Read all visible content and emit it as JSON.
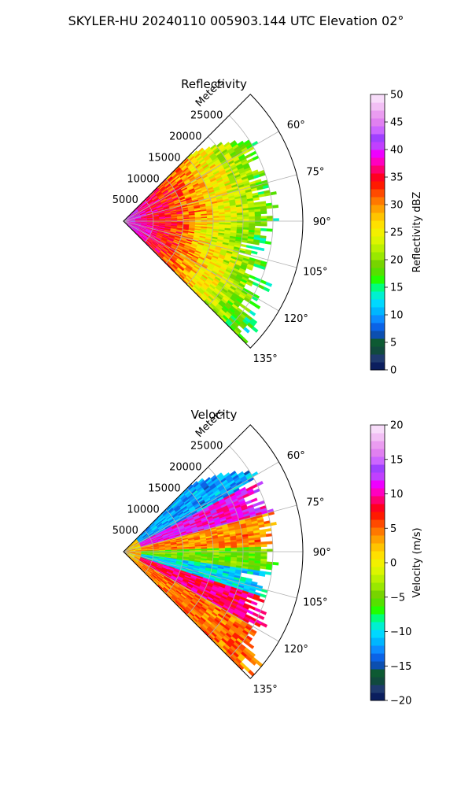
{
  "suptitle": "SKYLER-HU  20240110  005903.144 UTC Elevation 02°",
  "chart_data": [
    {
      "type": "heatmap",
      "projection": "polar-sector",
      "title": "Reflectivity",
      "range_label": "Meters",
      "range_ticks": [
        5000,
        10000,
        15000,
        20000,
        25000
      ],
      "range_tick_labels": [
        "5000",
        "10000",
        "15000",
        "20000",
        "25000"
      ],
      "range_max": 30000,
      "azimuth_range_deg": [
        45,
        135
      ],
      "azimuth_ticks": [
        60,
        75,
        90,
        105,
        120,
        135
      ],
      "azimuth_tick_labels": [
        "60°",
        "75°",
        "90°",
        "105°",
        "120°",
        "135°"
      ],
      "grid": true,
      "colorbar": {
        "label": "Reflectivity dBZ",
        "range": [
          0,
          50
        ],
        "ticks": [
          0,
          5,
          10,
          15,
          20,
          25,
          30,
          35,
          40,
          45,
          50
        ],
        "tick_labels": [
          "0",
          "5",
          "10",
          "15",
          "20",
          "25",
          "30",
          "35",
          "40",
          "45",
          "50"
        ],
        "colormap": [
          "#0b1e5e",
          "#1f3a6e",
          "#114a3e",
          "#0d5a33",
          "#0c4fb0",
          "#0b63e6",
          "#0c8cff",
          "#00b6ff",
          "#00d8ff",
          "#00f0d0",
          "#00ff7a",
          "#22ff00",
          "#55e000",
          "#77d400",
          "#99e800",
          "#bbf000",
          "#dcf500",
          "#f2f000",
          "#ffe000",
          "#ffc400",
          "#ffa000",
          "#ff7800",
          "#ff4a00",
          "#ff1a00",
          "#ff0020",
          "#ff0070",
          "#ff00c0",
          "#ee00ff",
          "#c040ff",
          "#a040ff",
          "#cc66ff",
          "#e080f0",
          "#ea9cf0",
          "#f2bff5",
          "#f8dcfa"
        ]
      },
      "field_description": "strong returns near radar, decreasing with range"
    },
    {
      "type": "heatmap",
      "projection": "polar-sector",
      "title": "Velocity",
      "range_label": "Meters",
      "range_ticks": [
        5000,
        10000,
        15000,
        20000,
        25000
      ],
      "range_tick_labels": [
        "5000",
        "10000",
        "15000",
        "20000",
        "25000"
      ],
      "range_max": 30000,
      "azimuth_range_deg": [
        45,
        135
      ],
      "azimuth_ticks": [
        60,
        75,
        90,
        105,
        120,
        135
      ],
      "azimuth_tick_labels": [
        "60°",
        "75°",
        "90°",
        "105°",
        "120°",
        "135°"
      ],
      "grid": true,
      "colorbar": {
        "label": "Velocity (m/s)",
        "range": [
          -20,
          20
        ],
        "ticks": [
          -20,
          -15,
          -10,
          -5,
          0,
          5,
          10,
          15,
          20
        ],
        "tick_labels": [
          "−20",
          "−15",
          "−10",
          "−5",
          "0",
          "5",
          "10",
          "15",
          "20"
        ],
        "colormap": [
          "#0b1e5e",
          "#1f3a6e",
          "#114a3e",
          "#0d5a33",
          "#0c4fb0",
          "#0b63e6",
          "#0c8cff",
          "#00b6ff",
          "#00d8ff",
          "#00f0d0",
          "#00ff7a",
          "#22ff00",
          "#55e000",
          "#77d400",
          "#99e800",
          "#bbf000",
          "#dcf500",
          "#f2f000",
          "#ffe000",
          "#ffc400",
          "#ffa000",
          "#ff7800",
          "#ff4a00",
          "#ff1a00",
          "#ff0020",
          "#ff0070",
          "#ff00c0",
          "#ee00ff",
          "#c040ff",
          "#a040ff",
          "#cc66ff",
          "#e080f0",
          "#ea9cf0",
          "#f2bff5",
          "#f8dcfa"
        ]
      },
      "field_description": "banded velocities alternating by azimuth"
    }
  ]
}
